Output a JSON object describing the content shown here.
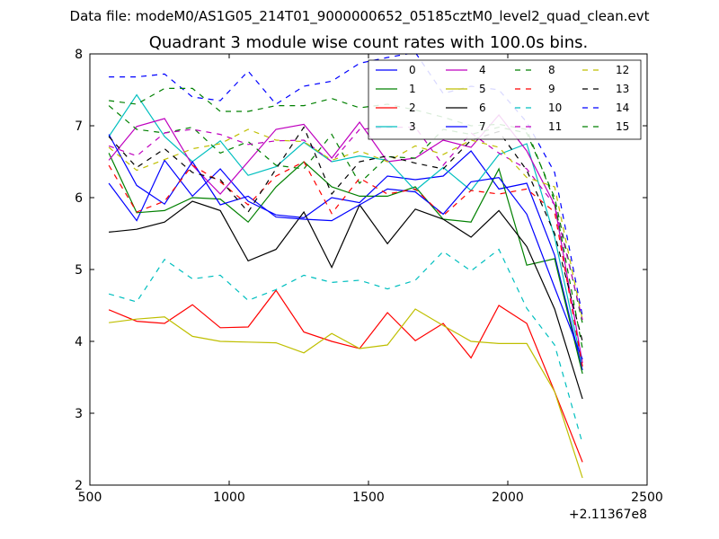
{
  "header": {
    "data_file_text": "Data file: modeM0/AS1G05_214T01_9000000652_05185cztM0_level2_quad_clean.evt"
  },
  "chart_data": {
    "type": "line",
    "title": "Quadrant 3 module wise count rates with 100.0s bins.",
    "xlabel": "",
    "ylabel": "",
    "xlim": [
      500,
      2500
    ],
    "ylim": [
      2,
      8
    ],
    "x_ticks": [
      500,
      1000,
      1500,
      2000,
      2500
    ],
    "x_tick_labels": [
      "500",
      "1000",
      "1500",
      "2000",
      "2500"
    ],
    "y_ticks": [
      2,
      3,
      4,
      5,
      6,
      7,
      8
    ],
    "y_tick_labels": [
      "2",
      "3",
      "4",
      "5",
      "6",
      "7",
      "8"
    ],
    "x_offset_label": "+2.11367e8",
    "grid": false,
    "legend_placement": "top-right",
    "x": [
      568,
      668,
      768,
      868,
      968,
      1068,
      1168,
      1268,
      1368,
      1468,
      1568,
      1668,
      1768,
      1868,
      1968,
      2068,
      2168,
      2268
    ],
    "series": [
      {
        "name": "0",
        "color": "#0000ff",
        "dash": "solid",
        "values": [
          6.2,
          5.68,
          6.52,
          6.02,
          6.4,
          5.95,
          5.76,
          5.72,
          6.0,
          5.93,
          6.3,
          6.25,
          6.3,
          6.65,
          6.12,
          6.2,
          5.2,
          3.6
        ]
      },
      {
        "name": "1",
        "color": "#008000",
        "dash": "solid",
        "values": [
          6.62,
          5.79,
          5.82,
          6.0,
          5.98,
          5.66,
          6.15,
          6.5,
          6.15,
          6.02,
          6.02,
          6.15,
          5.7,
          5.66,
          6.4,
          5.06,
          5.15,
          3.55
        ]
      },
      {
        "name": "2",
        "color": "#ff0000",
        "dash": "solid",
        "values": [
          4.44,
          4.28,
          4.25,
          4.51,
          4.19,
          4.2,
          4.71,
          4.13,
          4.0,
          3.9,
          4.4,
          4.01,
          4.25,
          3.77,
          4.5,
          4.25,
          3.3,
          2.32
        ]
      },
      {
        "name": "3",
        "color": "#00bfbf",
        "dash": "solid",
        "values": [
          6.85,
          7.43,
          6.85,
          6.5,
          6.79,
          6.31,
          6.43,
          6.77,
          6.5,
          6.58,
          6.52,
          6.1,
          6.42,
          6.1,
          6.6,
          6.75,
          5.45,
          3.65
        ]
      },
      {
        "name": "4",
        "color": "#bf00bf",
        "dash": "solid",
        "values": [
          6.52,
          6.99,
          7.1,
          6.45,
          6.05,
          6.5,
          6.95,
          7.02,
          6.55,
          7.05,
          6.5,
          6.55,
          6.8,
          6.7,
          7.15,
          6.65,
          5.9,
          3.7
        ]
      },
      {
        "name": "5",
        "color": "#bfbf00",
        "dash": "solid",
        "values": [
          4.26,
          4.31,
          4.34,
          4.07,
          4.0,
          3.99,
          3.98,
          3.84,
          4.11,
          3.9,
          3.95,
          4.45,
          4.22,
          4.0,
          3.97,
          3.97,
          3.3,
          2.1
        ]
      },
      {
        "name": "6",
        "color": "#000000",
        "dash": "solid",
        "values": [
          5.52,
          5.56,
          5.66,
          5.95,
          5.82,
          5.12,
          5.28,
          5.8,
          5.03,
          5.9,
          5.36,
          5.84,
          5.7,
          5.45,
          5.82,
          5.32,
          4.45,
          3.2
        ]
      },
      {
        "name": "7",
        "color": "#0000ff",
        "dash": "solid",
        "values": [
          6.88,
          6.17,
          5.91,
          6.5,
          5.9,
          6.02,
          5.73,
          5.7,
          5.68,
          5.9,
          6.12,
          6.08,
          5.77,
          6.22,
          6.28,
          5.77,
          4.75,
          3.75
        ]
      },
      {
        "name": "8",
        "color": "#008000",
        "dash": "dashed",
        "values": [
          7.28,
          6.95,
          6.9,
          6.98,
          6.62,
          6.78,
          6.45,
          6.4,
          6.88,
          6.2,
          6.57,
          6.55,
          6.95,
          6.88,
          6.98,
          6.9,
          6.0,
          4.25
        ]
      },
      {
        "name": "9",
        "color": "#ff0000",
        "dash": "dashed",
        "values": [
          6.45,
          5.8,
          5.95,
          6.45,
          6.22,
          5.9,
          6.3,
          6.5,
          5.78,
          6.27,
          6.05,
          6.12,
          5.75,
          6.1,
          6.05,
          6.12,
          5.8,
          3.65
        ]
      },
      {
        "name": "10",
        "color": "#00bfbf",
        "dash": "dashed",
        "values": [
          4.66,
          4.55,
          5.14,
          4.87,
          4.92,
          4.57,
          4.72,
          4.92,
          4.82,
          4.85,
          4.73,
          4.85,
          5.25,
          4.98,
          5.28,
          4.46,
          3.95,
          2.58
        ]
      },
      {
        "name": "11",
        "color": "#bf00bf",
        "dash": "dashed",
        "values": [
          6.72,
          6.58,
          6.9,
          6.95,
          6.88,
          6.74,
          6.79,
          6.8,
          6.5,
          6.95,
          6.98,
          6.98,
          6.45,
          6.9,
          6.62,
          6.4,
          5.9,
          4.3
        ]
      },
      {
        "name": "12",
        "color": "#bfbf00",
        "dash": "dashed",
        "values": [
          6.7,
          6.38,
          6.53,
          6.68,
          6.75,
          6.95,
          6.8,
          6.78,
          6.52,
          6.65,
          6.5,
          6.72,
          6.6,
          6.8,
          6.7,
          6.28,
          6.15,
          4.3
        ]
      },
      {
        "name": "13",
        "color": "#000000",
        "dash": "dashed",
        "values": [
          6.85,
          6.42,
          6.68,
          6.35,
          6.25,
          5.8,
          6.4,
          6.98,
          6.05,
          6.5,
          6.58,
          6.48,
          6.4,
          6.8,
          6.92,
          6.38,
          5.5,
          4.0
        ]
      },
      {
        "name": "14",
        "color": "#0000ff",
        "dash": "dashed",
        "values": [
          7.68,
          7.68,
          7.72,
          7.4,
          7.35,
          7.76,
          7.3,
          7.55,
          7.62,
          7.87,
          7.95,
          8.02,
          7.45,
          7.55,
          7.5,
          7.05,
          6.35,
          4.35
        ]
      },
      {
        "name": "15",
        "color": "#008000",
        "dash": "dashed",
        "values": [
          7.35,
          7.3,
          7.52,
          7.52,
          7.2,
          7.2,
          7.28,
          7.28,
          7.38,
          7.25,
          7.3,
          7.22,
          7.12,
          7.0,
          7.02,
          6.95,
          5.95,
          3.9
        ]
      }
    ]
  }
}
